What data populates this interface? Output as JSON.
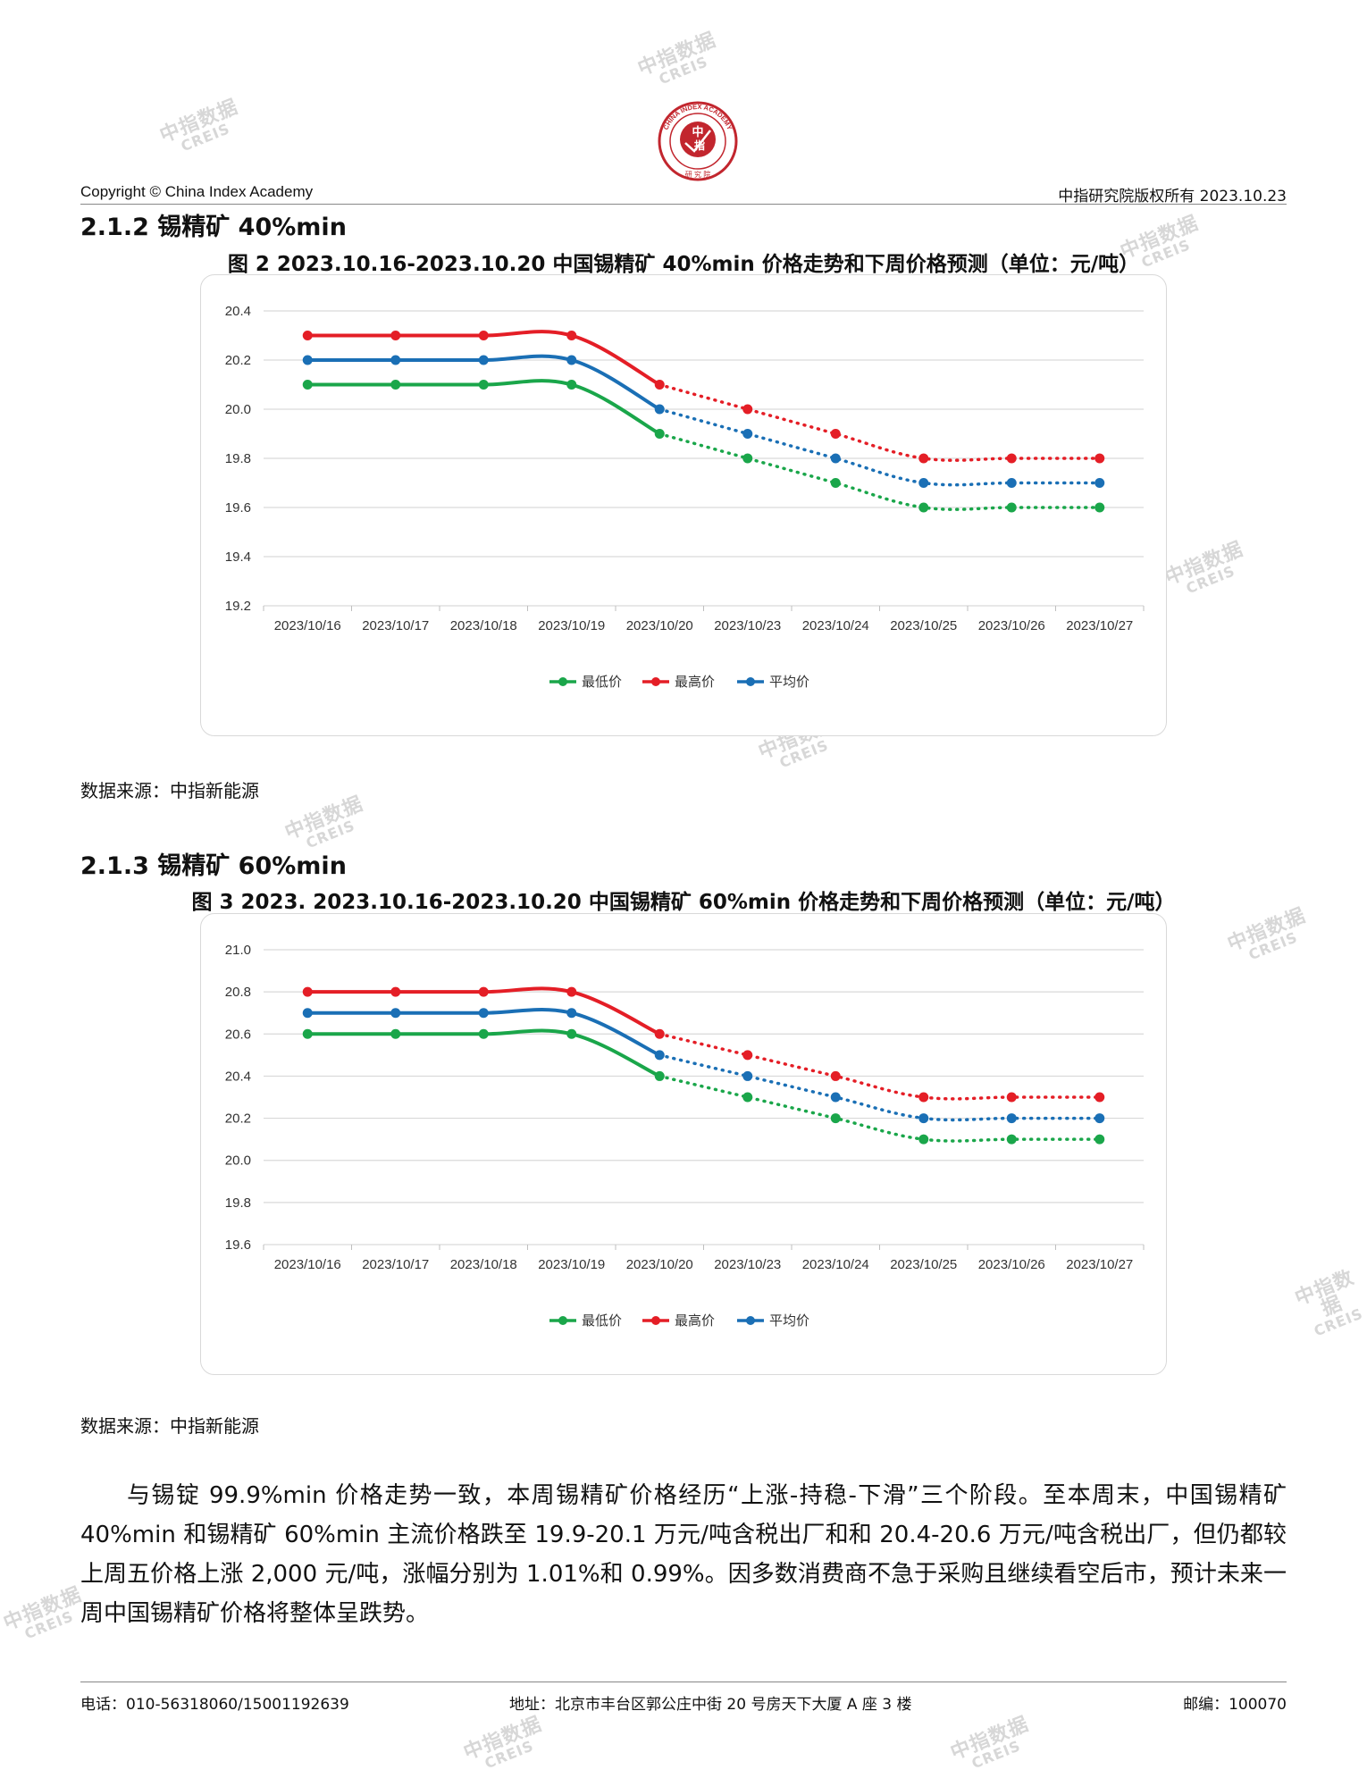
{
  "header": {
    "copyright": "Copyright © China Index Academy",
    "right": "中指研究院版权所有 2023.10.23",
    "logo_text": "CHINA INDEX ACADEMY 中指 研究院"
  },
  "watermark": {
    "cn": "中指数据",
    "en": "CREIS"
  },
  "sections": [
    {
      "title": "2.1.2 锡精矿 40%min"
    },
    {
      "title": "2.1.3 锡精矿 60%min"
    }
  ],
  "figures": [
    {
      "caption": "图 2 2023.10.16-2023.10.20 中国锡精矿 40%min 价格走势和下周价格预测（单位：元/吨）"
    },
    {
      "caption": "图 3 2023. 2023.10.16-2023.10.20 中国锡精矿 60%min 价格走势和下周价格预测（单位：元/吨）"
    }
  ],
  "source_label": "数据来源：中指新能源",
  "chart_data": [
    {
      "type": "line",
      "categories": [
        "2023/10/16",
        "2023/10/17",
        "2023/10/18",
        "2023/10/19",
        "2023/10/20",
        "2023/10/23",
        "2023/10/24",
        "2023/10/25",
        "2023/10/26",
        "2023/10/27"
      ],
      "ylim": [
        19.2,
        20.4
      ],
      "yticks": [
        "19.2",
        "19.4",
        "19.6",
        "19.8",
        "20.0",
        "20.2",
        "20.4"
      ],
      "grid": true,
      "legend": "bottom",
      "solid_until_index": 4,
      "series": [
        {
          "name": "最低价",
          "color": "#1aa64a",
          "values": [
            20.1,
            20.1,
            20.1,
            20.1,
            19.9,
            19.8,
            19.7,
            19.6,
            19.6,
            19.6
          ]
        },
        {
          "name": "最高价",
          "color": "#e41e26",
          "values": [
            20.3,
            20.3,
            20.3,
            20.3,
            20.1,
            20.0,
            19.9,
            19.8,
            19.8,
            19.8
          ]
        },
        {
          "name": "平均价",
          "color": "#1a6fb5",
          "values": [
            20.2,
            20.2,
            20.2,
            20.2,
            20.0,
            19.9,
            19.8,
            19.7,
            19.7,
            19.7
          ]
        }
      ]
    },
    {
      "type": "line",
      "categories": [
        "2023/10/16",
        "2023/10/17",
        "2023/10/18",
        "2023/10/19",
        "2023/10/20",
        "2023/10/23",
        "2023/10/24",
        "2023/10/25",
        "2023/10/26",
        "2023/10/27"
      ],
      "ylim": [
        19.6,
        21.0
      ],
      "yticks": [
        "19.6",
        "19.8",
        "20.0",
        "20.2",
        "20.4",
        "20.6",
        "20.8",
        "21.0"
      ],
      "grid": true,
      "legend": "bottom",
      "solid_until_index": 4,
      "series": [
        {
          "name": "最低价",
          "color": "#1aa64a",
          "values": [
            20.6,
            20.6,
            20.6,
            20.6,
            20.4,
            20.3,
            20.2,
            20.1,
            20.1,
            20.1
          ]
        },
        {
          "name": "最高价",
          "color": "#e41e26",
          "values": [
            20.8,
            20.8,
            20.8,
            20.8,
            20.6,
            20.5,
            20.4,
            20.3,
            20.3,
            20.3
          ]
        },
        {
          "name": "平均价",
          "color": "#1a6fb5",
          "values": [
            20.7,
            20.7,
            20.7,
            20.7,
            20.5,
            20.4,
            20.3,
            20.2,
            20.2,
            20.2
          ]
        }
      ]
    }
  ],
  "paragraph": "与锡锭 99.9%min 价格走势一致，本周锡精矿价格经历“上涨-持稳-下滑”三个阶段。至本周末，中国锡精矿 40%min 和锡精矿 60%min 主流价格跌至 19.9-20.1 万元/吨含税出厂和和 20.4-20.6 万元/吨含税出厂，但仍都较上周五价格上涨 2,000 元/吨，涨幅分别为 1.01%和 0.99%。因多数消费商不急于采购且继续看空后市，预计未来一周中国锡精矿价格将整体呈跌势。",
  "footer": {
    "phone": "电话：010-56318060/15001192639",
    "address": "地址：北京市丰台区郭公庄中街 20 号房天下大厦 A 座 3 楼",
    "postcode": "邮编：100070"
  }
}
